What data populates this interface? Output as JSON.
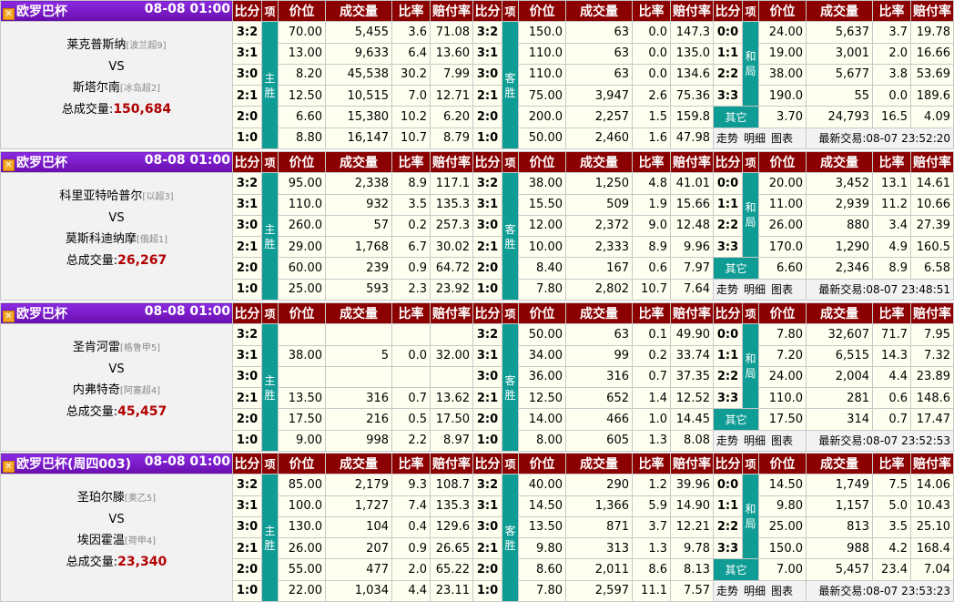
{
  "headers": [
    "比分",
    "项",
    "价位",
    "成交量",
    "比率",
    "赔付率"
  ],
  "labels": {
    "home": [
      "主",
      "胜"
    ],
    "away": [
      "客",
      "胜"
    ],
    "draw": [
      "和",
      "局"
    ],
    "other": "其它",
    "total_prefix": "总成交量:",
    "vs": "VS",
    "link_trend": "走势",
    "link_detail": "明细",
    "link_chart": "图表",
    "latest_prefix": "最新交易:"
  },
  "matches": [
    {
      "league": "欧罗巴杯",
      "time": "08-08 01:00",
      "home_team": "莱克普斯纳",
      "home_rank": "[波兰超9]",
      "away_team": "斯塔尔南",
      "away_rank": "[冰岛超2]",
      "total": "150,684",
      "latest": "08-07 23:52:20",
      "home": [
        [
          "3:2",
          "70.00",
          "5,455",
          "3.6",
          "71.08"
        ],
        [
          "3:1",
          "13.00",
          "9,633",
          "6.4",
          "13.60"
        ],
        [
          "3:0",
          "8.20",
          "45,538",
          "30.2",
          "7.99"
        ],
        [
          "2:1",
          "12.50",
          "10,515",
          "7.0",
          "12.71"
        ],
        [
          "2:0",
          "6.60",
          "15,380",
          "10.2",
          "6.20"
        ],
        [
          "1:0",
          "8.80",
          "16,147",
          "10.7",
          "8.79"
        ]
      ],
      "away": [
        [
          "150.0",
          "63",
          "0.0",
          "147.3"
        ],
        [
          "110.0",
          "63",
          "0.0",
          "135.0"
        ],
        [
          "110.0",
          "63",
          "0.0",
          "134.6"
        ],
        [
          "75.00",
          "3,947",
          "2.6",
          "75.36"
        ],
        [
          "200.0",
          "2,257",
          "1.5",
          "159.8"
        ],
        [
          "50.00",
          "2,460",
          "1.6",
          "47.98"
        ]
      ],
      "draw": [
        [
          "0:0",
          "24.00",
          "5,637",
          "3.7",
          "19.78"
        ],
        [
          "1:1",
          "19.00",
          "3,001",
          "2.0",
          "16.66"
        ],
        [
          "2:2",
          "38.00",
          "5,677",
          "3.8",
          "53.69"
        ],
        [
          "3:3",
          "190.0",
          "55",
          "0.0",
          "189.6"
        ],
        [
          "其它",
          "3.70",
          "24,793",
          "16.5",
          "4.09"
        ]
      ]
    },
    {
      "league": "欧罗巴杯",
      "time": "08-08 01:00",
      "home_team": "科里亚特哈普尔",
      "home_rank": "[以超3]",
      "away_team": "莫斯科迪纳摩",
      "away_rank": "[俄超1]",
      "total": "26,267",
      "latest": "08-07 23:48:51",
      "home": [
        [
          "3:2",
          "95.00",
          "2,338",
          "8.9",
          "117.1"
        ],
        [
          "3:1",
          "110.0",
          "932",
          "3.5",
          "135.3"
        ],
        [
          "3:0",
          "260.0",
          "57",
          "0.2",
          "257.3"
        ],
        [
          "2:1",
          "29.00",
          "1,768",
          "6.7",
          "30.02"
        ],
        [
          "2:0",
          "60.00",
          "239",
          "0.9",
          "64.72"
        ],
        [
          "1:0",
          "25.00",
          "593",
          "2.3",
          "23.92"
        ]
      ],
      "away": [
        [
          "38.00",
          "1,250",
          "4.8",
          "41.01"
        ],
        [
          "15.50",
          "509",
          "1.9",
          "15.66"
        ],
        [
          "12.00",
          "2,372",
          "9.0",
          "12.48"
        ],
        [
          "10.00",
          "2,333",
          "8.9",
          "9.96"
        ],
        [
          "8.40",
          "167",
          "0.6",
          "7.97"
        ],
        [
          "7.80",
          "2,802",
          "10.7",
          "7.64"
        ]
      ],
      "draw": [
        [
          "0:0",
          "20.00",
          "3,452",
          "13.1",
          "14.61"
        ],
        [
          "1:1",
          "11.00",
          "2,939",
          "11.2",
          "10.66"
        ],
        [
          "2:2",
          "26.00",
          "880",
          "3.4",
          "27.39"
        ],
        [
          "3:3",
          "170.0",
          "1,290",
          "4.9",
          "160.5"
        ],
        [
          "其它",
          "6.60",
          "2,346",
          "8.9",
          "6.58"
        ]
      ]
    },
    {
      "league": "欧罗巴杯",
      "time": "08-08 01:00",
      "home_team": "圣肯河雷",
      "home_rank": "[格鲁甲5]",
      "away_team": "内弗特奇",
      "away_rank": "[阿塞超4]",
      "total": "45,457",
      "latest": "08-07 23:52:53",
      "home": [
        [
          "3:2",
          "",
          "",
          "",
          ""
        ],
        [
          "3:1",
          "38.00",
          "5",
          "0.0",
          "32.00"
        ],
        [
          "3:0",
          "",
          "",
          "",
          ""
        ],
        [
          "2:1",
          "13.50",
          "316",
          "0.7",
          "13.62"
        ],
        [
          "2:0",
          "17.50",
          "216",
          "0.5",
          "17.50"
        ],
        [
          "1:0",
          "9.00",
          "998",
          "2.2",
          "8.97"
        ]
      ],
      "away": [
        [
          "50.00",
          "63",
          "0.1",
          "49.90"
        ],
        [
          "34.00",
          "99",
          "0.2",
          "33.74"
        ],
        [
          "36.00",
          "316",
          "0.7",
          "37.35"
        ],
        [
          "12.50",
          "652",
          "1.4",
          "12.52"
        ],
        [
          "14.00",
          "466",
          "1.0",
          "14.45"
        ],
        [
          "8.00",
          "605",
          "1.3",
          "8.08"
        ]
      ],
      "draw": [
        [
          "0:0",
          "7.80",
          "32,607",
          "71.7",
          "7.95"
        ],
        [
          "1:1",
          "7.20",
          "6,515",
          "14.3",
          "7.32"
        ],
        [
          "2:2",
          "24.00",
          "2,004",
          "4.4",
          "23.89"
        ],
        [
          "3:3",
          "110.0",
          "281",
          "0.6",
          "148.6"
        ],
        [
          "其它",
          "17.50",
          "314",
          "0.7",
          "17.47"
        ]
      ]
    },
    {
      "league": "欧罗巴杯(周四003)",
      "time": "08-08 01:00",
      "home_team": "圣珀尔滕",
      "home_rank": "[奥乙5]",
      "away_team": "埃因霍温",
      "away_rank": "[荷甲4]",
      "total": "23,340",
      "latest": "08-07 23:53:23",
      "home": [
        [
          "3:2",
          "85.00",
          "2,179",
          "9.3",
          "108.7"
        ],
        [
          "3:1",
          "100.0",
          "1,727",
          "7.4",
          "135.3"
        ],
        [
          "3:0",
          "130.0",
          "104",
          "0.4",
          "129.6"
        ],
        [
          "2:1",
          "26.00",
          "207",
          "0.9",
          "26.65"
        ],
        [
          "2:0",
          "55.00",
          "477",
          "2.0",
          "65.22"
        ],
        [
          "1:0",
          "22.00",
          "1,034",
          "4.4",
          "23.11"
        ]
      ],
      "away": [
        [
          "40.00",
          "290",
          "1.2",
          "39.96"
        ],
        [
          "14.50",
          "1,366",
          "5.9",
          "14.90"
        ],
        [
          "13.50",
          "871",
          "3.7",
          "12.21"
        ],
        [
          "9.80",
          "313",
          "1.3",
          "9.78"
        ],
        [
          "8.60",
          "2,011",
          "8.6",
          "8.13"
        ],
        [
          "7.80",
          "2,597",
          "11.1",
          "7.57"
        ]
      ],
      "draw": [
        [
          "0:0",
          "14.50",
          "1,749",
          "7.5",
          "14.06"
        ],
        [
          "1:1",
          "9.80",
          "1,157",
          "5.0",
          "10.43"
        ],
        [
          "2:2",
          "25.00",
          "813",
          "3.5",
          "25.10"
        ],
        [
          "3:3",
          "150.0",
          "988",
          "4.2",
          "168.4"
        ],
        [
          "其它",
          "7.00",
          "5,457",
          "23.4",
          "7.04"
        ]
      ]
    }
  ]
}
